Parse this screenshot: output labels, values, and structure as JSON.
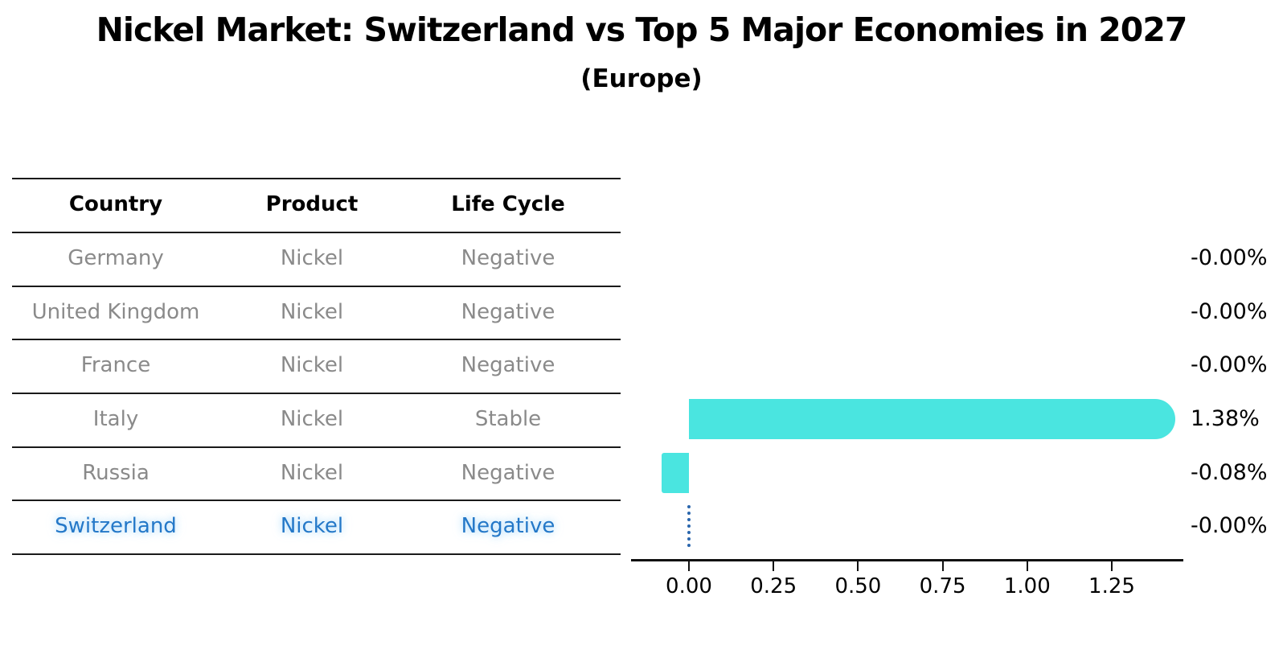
{
  "title": "Nickel Market: Switzerland vs Top 5 Major Economies in 2027",
  "subtitle": "(Europe)",
  "table": {
    "headers": [
      "Country",
      "Product",
      "Life Cycle"
    ],
    "rows": [
      {
        "country": "Germany",
        "product": "Nickel",
        "life_cycle": "Negative",
        "highlight": false
      },
      {
        "country": "United Kingdom",
        "product": "Nickel",
        "life_cycle": "Negative",
        "highlight": false
      },
      {
        "country": "France",
        "product": "Nickel",
        "life_cycle": "Negative",
        "highlight": false
      },
      {
        "country": "Italy",
        "product": "Nickel",
        "life_cycle": "Stable",
        "highlight": false
      },
      {
        "country": "Russia",
        "product": "Nickel",
        "life_cycle": "Negative",
        "highlight": false
      },
      {
        "country": "Switzerland",
        "product": "Nickel",
        "life_cycle": "Negative",
        "highlight": true
      }
    ]
  },
  "chart_data": {
    "type": "bar",
    "orientation": "horizontal",
    "title": "Nickel Market: Switzerland vs Top 5 Major Economies in 2027",
    "subtitle": "(Europe)",
    "categories": [
      "Germany",
      "United Kingdom",
      "France",
      "Italy",
      "Russia",
      "Switzerland"
    ],
    "values": [
      -0.0,
      -0.0,
      -0.0,
      1.38,
      -0.08,
      -0.0
    ],
    "value_labels": [
      "-0.00%",
      "-0.00%",
      "-0.00%",
      "1.38%",
      "-0.08%",
      "-0.00%"
    ],
    "xticks": [
      "0.00",
      "0.25",
      "0.50",
      "0.75",
      "1.00",
      "1.25"
    ],
    "xtick_values": [
      0,
      0.25,
      0.5,
      0.75,
      1.0,
      1.25
    ],
    "xlim": [
      -0.17,
      1.46
    ],
    "grid": false,
    "legend": "none",
    "bar_color": "#4ae5e0",
    "highlight_line_color": "#2a66ad",
    "highlight_index": 5
  },
  "colors": {
    "background": "#ffffff",
    "text": "#000000",
    "muted_text": "#8a8a8a",
    "highlight_text": "#2478c8",
    "bar": "#4ae5e0",
    "marker": "#2a66ad",
    "rule": "#1a1a1a"
  }
}
